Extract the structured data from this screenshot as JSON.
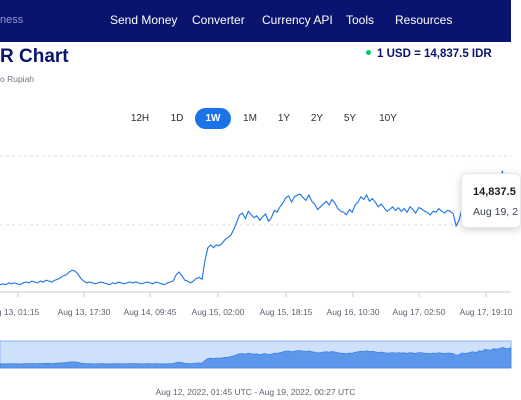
{
  "nav": {
    "brand_fragment": "ness",
    "items": [
      "Send Money",
      "Converter",
      "Currency API",
      "Tools",
      "Resources"
    ]
  },
  "header": {
    "title": "R Chart",
    "subtitle": "o Rupiah",
    "rate": "1 USD = 14,837.5 IDR"
  },
  "ranges": {
    "options": [
      "12H",
      "1D",
      "1W",
      "1M",
      "1Y",
      "2Y",
      "5Y",
      "10Y"
    ],
    "selected": "1W"
  },
  "tooltip": {
    "value": "14,837.5",
    "date": "Aug 19, 2"
  },
  "chart_data": {
    "type": "line",
    "x_tick_labels": [
      "g 13, 01:15",
      "Aug 13, 17:30",
      "Aug 14, 09:45",
      "Aug 15, 02:00",
      "Aug 15, 18:15",
      "Aug 16, 10:30",
      "Aug 17, 02:50",
      "Aug 17, 19:10"
    ],
    "series": [
      {
        "values": [
          14708,
          14709,
          14708,
          14710,
          14709,
          14710,
          14709,
          14708,
          14710,
          14711,
          14710,
          14712,
          14711,
          14710,
          14712,
          14711,
          14713,
          14712,
          14711,
          14713,
          14714,
          14716,
          14718,
          14719,
          14722,
          14724,
          14723,
          14720,
          14715,
          14712,
          14710,
          14711,
          14710,
          14709,
          14710,
          14711,
          14710,
          14709,
          14708,
          14710,
          14709,
          14711,
          14710,
          14709,
          14710,
          14711,
          14710,
          14711,
          14710,
          14709,
          14710,
          14711,
          14710,
          14709,
          14711,
          14710,
          14709,
          14708,
          14710,
          14711,
          14712,
          14719,
          14722,
          14718,
          14713,
          14712,
          14710,
          14712,
          14715,
          14716,
          14714,
          14735,
          14749,
          14752,
          14749,
          14752,
          14751,
          14754,
          14758,
          14760,
          14763,
          14769,
          14777,
          14785,
          14787,
          14781,
          14789,
          14785,
          14782,
          14784,
          14779,
          14783,
          14786,
          14778,
          14782,
          14790,
          14788,
          14794,
          14798,
          14804,
          14806,
          14799,
          14805,
          14807,
          14808,
          14804,
          14801,
          14807,
          14800,
          14797,
          14791,
          14794,
          14797,
          14800,
          14796,
          14802,
          14798,
          14792,
          14789,
          14788,
          14785,
          14791,
          14788,
          14796,
          14799,
          14805,
          14802,
          14807,
          14800,
          14803,
          14799,
          14794,
          14797,
          14793,
          14789,
          14791,
          14794,
          14790,
          14793,
          14789,
          14792,
          14788,
          14794,
          14791,
          14787,
          14793,
          14792,
          14789,
          14788,
          14785,
          14789,
          14788,
          14792,
          14789,
          14787,
          14790,
          14789,
          14786,
          14773,
          14779,
          14791,
          14787,
          14789,
          14797,
          14799,
          14794,
          14807,
          14803,
          14818,
          14814,
          14812,
          14822,
          14819,
          14824,
          14833,
          14825,
          14822,
          14830
        ]
      }
    ],
    "overview_caption": "Aug 12, 2022, 01:45 UTC - Aug 19, 2022, 00:27 UTC"
  }
}
